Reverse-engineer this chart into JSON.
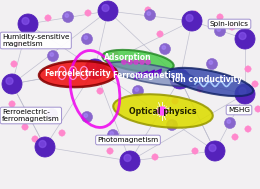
{
  "bg_color": "#f2f0f2",
  "labels": {
    "humidity": "Humidity-sensitive\nmagnetism",
    "spin_ionics": "Spin-ionics",
    "ferroelectricity": "Ferroelectricity",
    "ferroelectric_ferro": "Ferroelectric-\nferromagnetism",
    "adsorption": "Adsorption",
    "ferromagnetism": "Ferromagnetism",
    "ion_conductivity": "Ion conductivity",
    "optical": "Optical physics",
    "photomagnetism": "Photomagnetism",
    "mshg": "MSHG"
  },
  "large_sphere_color": "#5522bb",
  "large_sphere_hi": "#8855ee",
  "medium_sphere_color": "#8866cc",
  "medium_sphere_hi": "#aa88ff",
  "small_sphere_color": "#ff88cc",
  "small_sphere_edge": "#ee44aa",
  "line_color": "#bbbbcc",
  "label_box_edge": "#9988cc",
  "font_size": 5.2
}
